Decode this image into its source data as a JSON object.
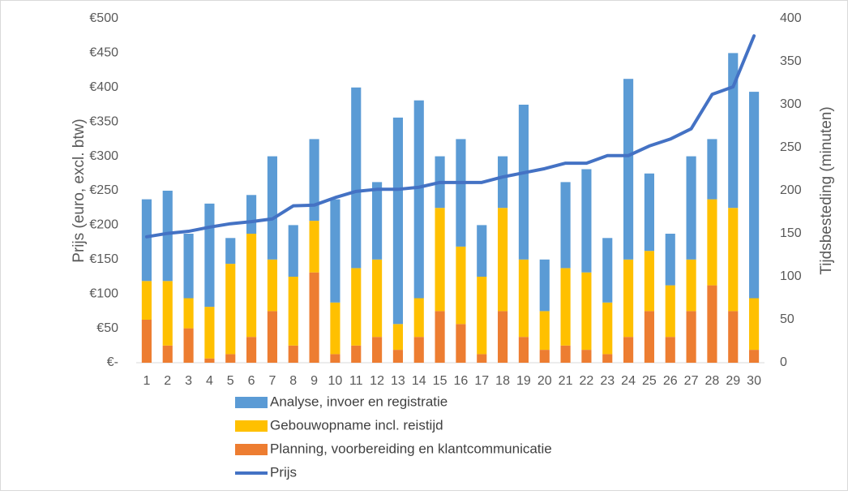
{
  "chart_data": {
    "type": "bar",
    "y_label": "Prijs (euro, excl. btw)",
    "y2_label": "Tijdsbesteding (minuten)",
    "categories": [
      "1",
      "2",
      "3",
      "4",
      "5",
      "6",
      "7",
      "8",
      "9",
      "10",
      "11",
      "12",
      "13",
      "14",
      "15",
      "16",
      "17",
      "18",
      "19",
      "20",
      "21",
      "22",
      "23",
      "24",
      "25",
      "26",
      "27",
      "28",
      "29",
      "30"
    ],
    "stacked": true,
    "ylim": [
      0,
      500
    ],
    "yticks": [
      {
        "value": 0,
        "label": "€-"
      },
      {
        "value": 50,
        "label": "€50"
      },
      {
        "value": 100,
        "label": "€100"
      },
      {
        "value": 150,
        "label": "€150"
      },
      {
        "value": 200,
        "label": "€200"
      },
      {
        "value": 250,
        "label": "€250"
      },
      {
        "value": 300,
        "label": "€300"
      },
      {
        "value": 350,
        "label": "€350"
      },
      {
        "value": 400,
        "label": "€400"
      },
      {
        "value": 450,
        "label": "€450"
      },
      {
        "value": 500,
        "label": "€500"
      }
    ],
    "y2lim": [
      0,
      400
    ],
    "y2ticks": [
      0,
      50,
      100,
      150,
      200,
      250,
      300,
      350,
      400
    ],
    "legend": "bottom",
    "series": [
      {
        "name": "Analyse, invoer en registratie",
        "type": "bar",
        "axis": "y2",
        "color": "#5b9bd5",
        "values": [
          95,
          105,
          75,
          120,
          30,
          45,
          120,
          60,
          95,
          120,
          210,
          90,
          240,
          230,
          60,
          125,
          60,
          60,
          180,
          60,
          100,
          120,
          75,
          210,
          90,
          60,
          120,
          70,
          180,
          240
        ]
      },
      {
        "name": "Gebouwopname incl. reistijd",
        "type": "bar",
        "axis": "y2",
        "color": "#ffc000",
        "values": [
          45,
          75,
          35,
          60,
          105,
          120,
          60,
          80,
          60,
          60,
          90,
          90,
          30,
          45,
          120,
          90,
          90,
          120,
          90,
          45,
          90,
          90,
          60,
          90,
          70,
          60,
          60,
          100,
          120,
          60
        ]
      },
      {
        "name": "Planning, voorbereiding en klantcommunicatie",
        "type": "bar",
        "axis": "y2",
        "color": "#ed7d31",
        "values": [
          50,
          20,
          40,
          5,
          10,
          30,
          60,
          20,
          105,
          10,
          20,
          30,
          15,
          30,
          60,
          45,
          10,
          60,
          30,
          15,
          20,
          15,
          10,
          30,
          60,
          30,
          60,
          90,
          60,
          15
        ]
      },
      {
        "name": "Prijs",
        "type": "line",
        "axis": "y",
        "color": "#4472c4",
        "values": [
          183,
          188,
          191,
          197,
          202,
          205,
          209,
          228,
          229,
          240,
          249,
          252,
          252,
          255,
          262,
          262,
          262,
          270,
          276,
          282,
          290,
          290,
          301,
          301,
          315,
          325,
          340,
          390,
          401,
          475
        ]
      }
    ]
  }
}
